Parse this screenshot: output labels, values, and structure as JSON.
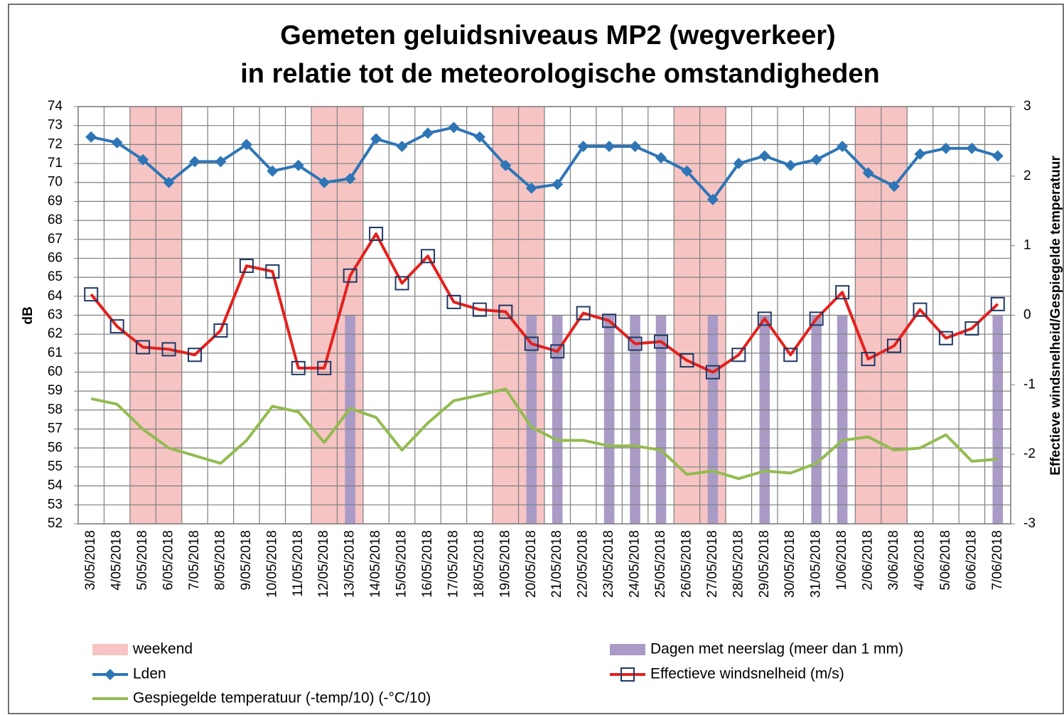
{
  "chart_data": {
    "type": "combo",
    "title": [
      "Gemeten geluidsniveaus MP2 (wegverkeer)",
      "in relatie tot de meteorologische omstandigheden"
    ],
    "y_label": "dB",
    "y2_label": "Effectieve windsnelheid/Gespiegelde temperatuur",
    "categories": [
      "3/05/2018",
      "4/05/2018",
      "5/05/2018",
      "6/05/2018",
      "7/05/2018",
      "8/05/2018",
      "9/05/2018",
      "10/05/2018",
      "11/05/2018",
      "12/05/2018",
      "13/05/2018",
      "14/05/2018",
      "15/05/2018",
      "16/05/2018",
      "17/05/2018",
      "18/05/2018",
      "19/05/2018",
      "20/05/2018",
      "21/05/2018",
      "22/05/2018",
      "23/05/2018",
      "24/05/2018",
      "25/05/2018",
      "26/05/2018",
      "27/05/2018",
      "28/05/2018",
      "29/05/2018",
      "30/05/2018",
      "31/05/2018",
      "1/06/2018",
      "2/06/2018",
      "3/06/2018",
      "4/06/2018",
      "5/06/2018",
      "6/06/2018",
      "7/06/2018"
    ],
    "ylim": [
      52,
      74
    ],
    "yticks": [
      52,
      53,
      54,
      55,
      56,
      57,
      58,
      59,
      60,
      61,
      62,
      63,
      64,
      65,
      66,
      67,
      68,
      69,
      70,
      71,
      72,
      73,
      74
    ],
    "y2lim": [
      -3,
      3
    ],
    "y2ticks": [
      -3,
      -2,
      -1,
      0,
      1,
      2,
      3
    ],
    "grid": true,
    "series": [
      {
        "name": "weekend",
        "type": "bar",
        "bar_width": 1.0,
        "color": "#f7c4c4",
        "values": [
          null,
          null,
          74,
          74,
          null,
          null,
          null,
          null,
          null,
          74,
          74,
          null,
          null,
          null,
          null,
          null,
          74,
          74,
          null,
          null,
          null,
          null,
          null,
          74,
          74,
          null,
          null,
          null,
          null,
          null,
          74,
          74,
          null,
          null,
          null,
          null
        ]
      },
      {
        "name": "Dagen met neerslag (meer dan 1 mm)",
        "type": "bar",
        "bar_width": 0.4,
        "color": "#a99bc6",
        "values": [
          null,
          null,
          null,
          null,
          null,
          null,
          null,
          null,
          null,
          null,
          63,
          null,
          null,
          null,
          null,
          null,
          null,
          63,
          63,
          null,
          63,
          63,
          63,
          null,
          63,
          null,
          63,
          null,
          63,
          63,
          null,
          null,
          null,
          null,
          null,
          63
        ]
      },
      {
        "name": "Lden",
        "type": "line",
        "marker": "diamond",
        "color": "#2e75b6",
        "values": [
          72.4,
          72.1,
          71.2,
          70.0,
          71.1,
          71.1,
          72.0,
          70.6,
          70.9,
          70.0,
          70.2,
          72.3,
          71.9,
          72.6,
          72.9,
          72.4,
          70.9,
          69.7,
          69.9,
          71.9,
          71.9,
          71.9,
          71.3,
          70.6,
          69.1,
          71.0,
          71.4,
          70.9,
          71.2,
          71.9,
          70.5,
          69.8,
          71.5,
          71.8,
          71.8,
          71.4
        ]
      },
      {
        "name": "Effectieve windsnelheid (m/s)",
        "type": "line",
        "marker": "square",
        "color": "#e4201c",
        "axis": "y2",
        "values": [
          0.3,
          -0.16,
          -0.46,
          -0.49,
          -0.57,
          -0.22,
          0.71,
          0.63,
          -0.76,
          -0.76,
          0.57,
          1.17,
          0.46,
          0.85,
          0.19,
          0.08,
          0.05,
          -0.41,
          -0.52,
          0.03,
          -0.08,
          -0.41,
          -0.38,
          -0.65,
          -0.82,
          -0.57,
          -0.05,
          -0.57,
          -0.05,
          0.33,
          -0.63,
          -0.44,
          0.08,
          -0.33,
          -0.19,
          0.16
        ]
      },
      {
        "name": "Gespiegelde temperatuur (-temp/10) (-°C/10)",
        "type": "line",
        "color": "#93bb50",
        "axis": "y2",
        "values": [
          -1.2,
          -1.28,
          -1.64,
          -1.91,
          -2.02,
          -2.13,
          -1.8,
          -1.31,
          -1.39,
          -1.83,
          -1.34,
          -1.47,
          -1.94,
          -1.55,
          -1.23,
          -1.15,
          -1.06,
          -1.61,
          -1.8,
          -1.8,
          -1.88,
          -1.88,
          -1.94,
          -2.29,
          -2.24,
          -2.35,
          -2.24,
          -2.27,
          -2.13,
          -1.8,
          -1.75,
          -1.94,
          -1.91,
          -1.72,
          -2.1,
          -2.07
        ]
      }
    ]
  }
}
